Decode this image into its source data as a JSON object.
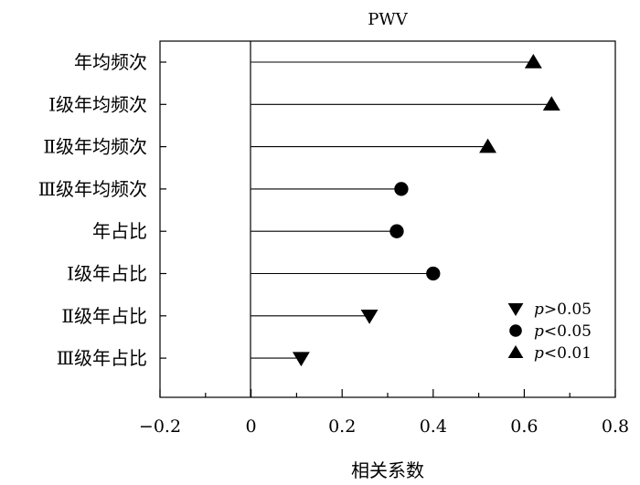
{
  "chart_data": {
    "type": "lollipop",
    "title": "PWV",
    "xlabel": "相关系数",
    "ylabel": "",
    "xlim": [
      -0.2,
      0.8
    ],
    "x_ticks": [
      -0.2,
      0,
      0.2,
      0.4,
      0.6,
      0.8
    ],
    "x_tick_labels": [
      "−0.2",
      "0",
      "0.2",
      "0.4",
      "0.6",
      "0.8"
    ],
    "grid": false,
    "legend_position": "bottom-right",
    "categories": [
      "年均频次",
      "Ⅰ级年均频次",
      "Ⅱ级年均频次",
      "Ⅲ级年均频次",
      "年占比",
      "Ⅰ级年占比",
      "Ⅱ级年占比",
      "Ⅲ级年占比"
    ],
    "values": [
      0.62,
      0.66,
      0.52,
      0.33,
      0.32,
      0.4,
      0.26,
      0.11
    ],
    "markers": [
      "triangle-up",
      "triangle-up",
      "triangle-up",
      "circle",
      "circle",
      "circle",
      "triangle-down",
      "triangle-down"
    ],
    "legend": [
      {
        "marker": "triangle-down",
        "label_italic": "p",
        "label_rest": ">0.05"
      },
      {
        "marker": "circle",
        "label_italic": "p",
        "label_rest": "<0.05"
      },
      {
        "marker": "triangle-up",
        "label_italic": "p",
        "label_rest": "<0.01"
      }
    ],
    "colors": {
      "marker": "#000000",
      "line": "#000000"
    }
  }
}
